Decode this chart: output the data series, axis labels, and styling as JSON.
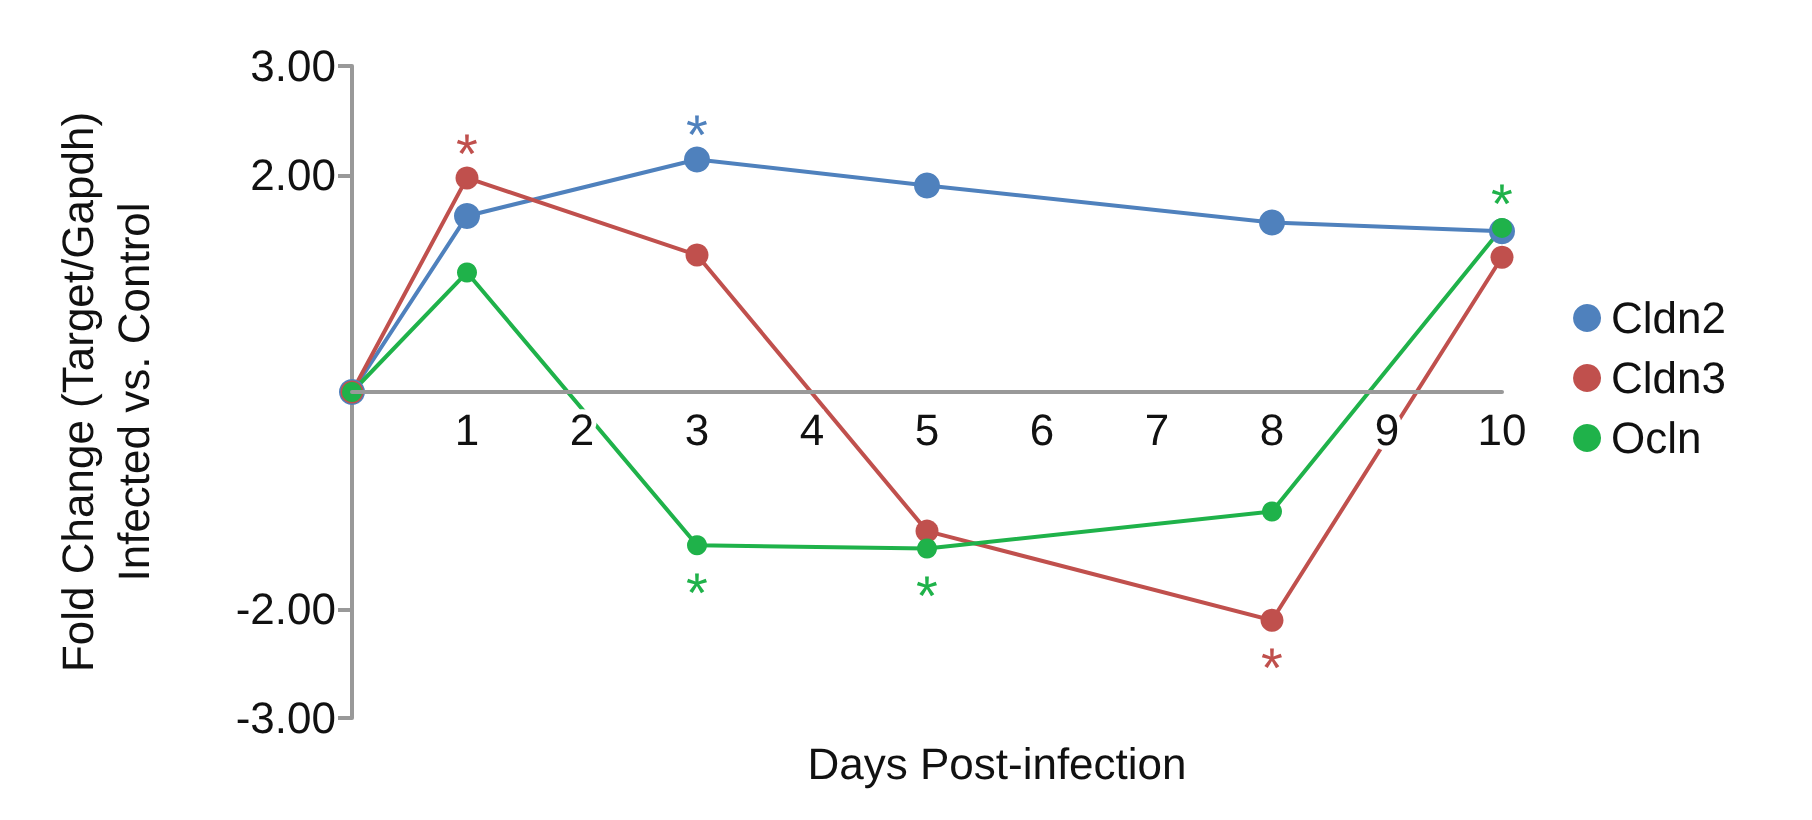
{
  "chart_data": {
    "type": "line",
    "xlabel": "Days Post-infection",
    "ylabel": "Fold Change (Target/Gapdh)\nInfected vs. Control",
    "categories": [
      null,
      "1",
      "2",
      "3",
      "4",
      "5",
      "6",
      "7",
      "8",
      "9",
      "10"
    ],
    "series": [
      {
        "name": "Cldn2",
        "color": "#4f81bd",
        "values": [
          0,
          1.62,
          null,
          2.14,
          null,
          1.9,
          null,
          null,
          1.56,
          null,
          1.48
        ]
      },
      {
        "name": "Cldn3",
        "color": "#c0504d",
        "values": [
          0,
          1.97,
          null,
          1.26,
          null,
          -1.28,
          null,
          null,
          -2.1,
          null,
          1.24
        ]
      },
      {
        "name": "Ocln",
        "color": "#1fb24a",
        "values": [
          0,
          1.1,
          null,
          -1.41,
          null,
          -1.44,
          null,
          null,
          -1.1,
          null,
          1.51
        ]
      }
    ],
    "ylim": [
      -3,
      3
    ],
    "yticks": [
      {
        "value": -3,
        "label": "-3.00"
      },
      {
        "value": -2,
        "label": "-2.00"
      },
      {
        "value": 2,
        "label": "2.00"
      },
      {
        "value": 3,
        "label": "3.00"
      }
    ],
    "annotations": [
      {
        "text": "*",
        "x": "1",
        "y": 1.97
      },
      {
        "text": "*",
        "x": "3",
        "y": 2.14
      },
      {
        "text": "*",
        "x": "3",
        "y": -1.41
      },
      {
        "text": "*",
        "x": "5",
        "y": -1.44
      },
      {
        "text": "*",
        "x": "8",
        "y": -2.1
      },
      {
        "text": "*",
        "x": "10",
        "y": 1.51
      }
    ],
    "grid": false,
    "legend": "right",
    "marker": "circle",
    "line_style": "solid"
  }
}
